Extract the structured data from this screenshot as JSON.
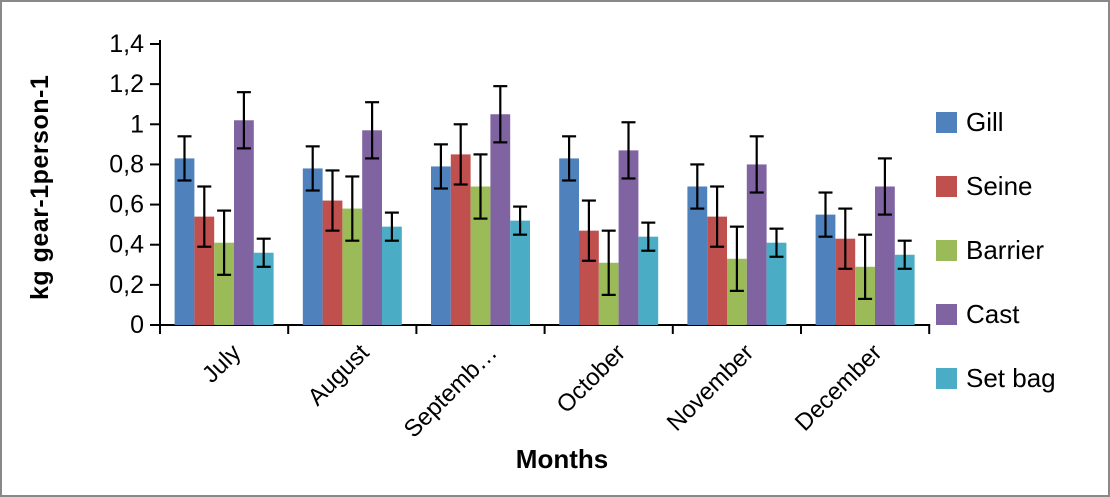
{
  "chart_data": {
    "type": "bar",
    "title": "",
    "xlabel": "Months",
    "ylabel": "kg gear-1person-1",
    "ylim": [
      0,
      1.4
    ],
    "ytick_step": 0.2,
    "ytick_labels": [
      "0",
      "0,2",
      "0,4",
      "0,6",
      "0,8",
      "1",
      "1,2",
      "1,4"
    ],
    "decimal_separator": ",",
    "grid": false,
    "legend_position": "right",
    "error_bars": true,
    "categories": [
      "July",
      "August",
      "Septemb…",
      "October",
      "November",
      "December"
    ],
    "series": [
      {
        "name": "Gill",
        "color": "#4F81BD",
        "values": [
          0.83,
          0.78,
          0.79,
          0.83,
          0.69,
          0.55
        ],
        "errors": [
          0.11,
          0.11,
          0.11,
          0.11,
          0.11,
          0.11
        ]
      },
      {
        "name": "Seine",
        "color": "#C0504D",
        "values": [
          0.54,
          0.62,
          0.85,
          0.47,
          0.54,
          0.43
        ],
        "errors": [
          0.15,
          0.15,
          0.15,
          0.15,
          0.15,
          0.15
        ]
      },
      {
        "name": "Barrier",
        "color": "#9BBB59",
        "values": [
          0.41,
          0.58,
          0.69,
          0.31,
          0.33,
          0.29
        ],
        "errors": [
          0.16,
          0.16,
          0.16,
          0.16,
          0.16,
          0.16
        ]
      },
      {
        "name": "Cast",
        "color": "#8064A2",
        "values": [
          1.02,
          0.97,
          1.05,
          0.87,
          0.8,
          0.69
        ],
        "errors": [
          0.14,
          0.14,
          0.14,
          0.14,
          0.14,
          0.14
        ]
      },
      {
        "name": "Set bag",
        "color": "#4BACC6",
        "values": [
          0.36,
          0.49,
          0.52,
          0.44,
          0.41,
          0.35
        ],
        "errors": [
          0.07,
          0.07,
          0.07,
          0.07,
          0.07,
          0.07
        ]
      }
    ],
    "axis_color": "#000000"
  }
}
